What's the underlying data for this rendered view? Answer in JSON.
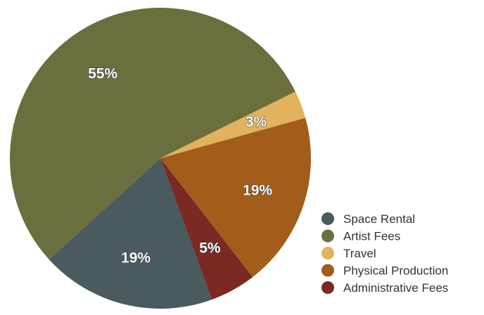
{
  "chart_data": {
    "type": "pie",
    "start_angle_deg": 160,
    "legend_position": "bottom-right",
    "series": [
      {
        "name": "Space Rental",
        "value": 19,
        "label": "19%",
        "color": "#4a5a5e"
      },
      {
        "name": "Artist Fees",
        "value": 55,
        "label": "55%",
        "color": "#6b6f3d"
      },
      {
        "name": "Travel",
        "value": 3,
        "label": "3%",
        "color": "#e3b25c"
      },
      {
        "name": "Physical Production",
        "value": 19,
        "label": "19%",
        "color": "#a35d1b"
      },
      {
        "name": "Administrative Fees",
        "value": 5,
        "label": "5%",
        "color": "#7a2a22"
      }
    ]
  }
}
